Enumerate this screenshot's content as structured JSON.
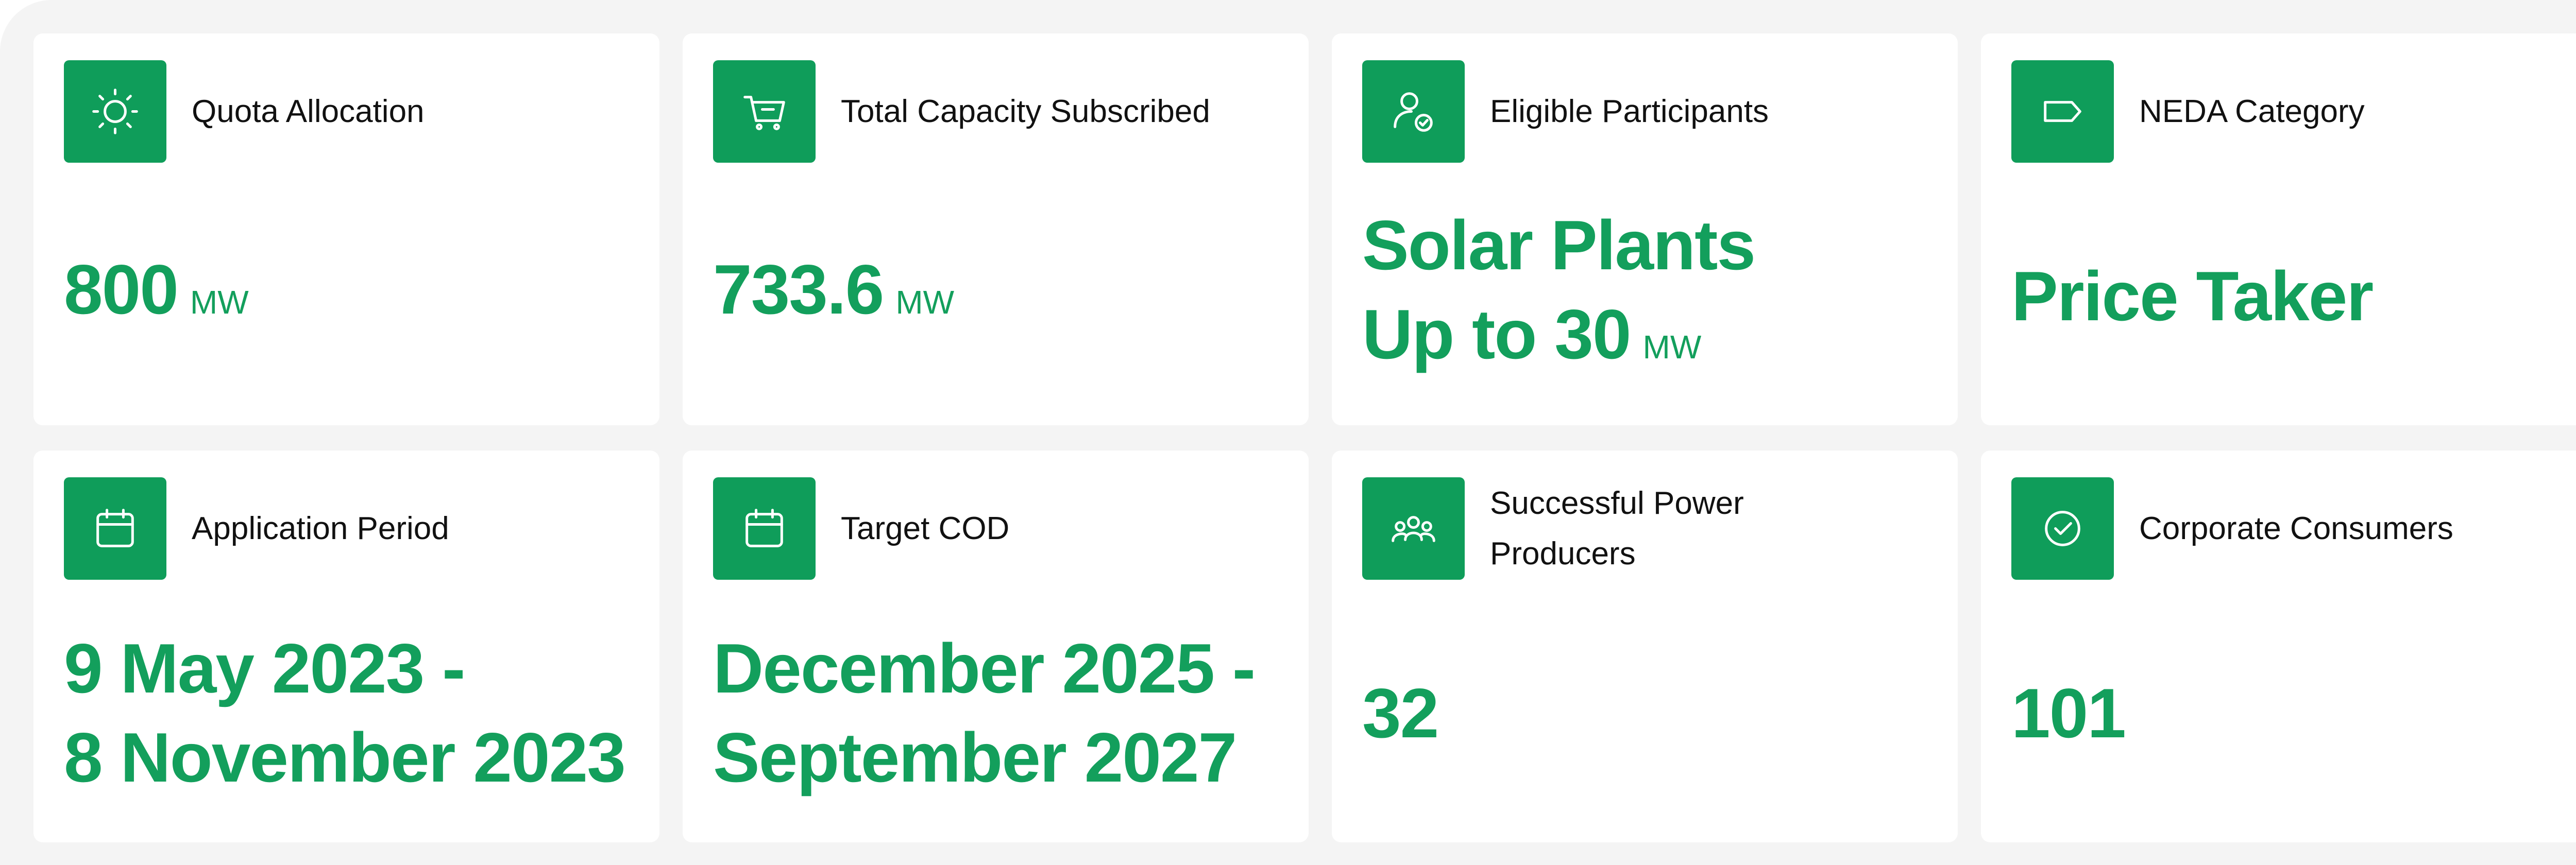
{
  "cards": [
    {
      "title": "Quota Allocation",
      "value": [
        "800"
      ],
      "unit": "MW"
    },
    {
      "title": "Total Capacity Subscribed",
      "value": [
        "733.6"
      ],
      "unit": "MW"
    },
    {
      "title": "Eligible Participants",
      "value": [
        "Solar Plants",
        "Up to 30"
      ],
      "unit": "MW"
    },
    {
      "title": "NEDA Category",
      "value": [
        "Price Taker"
      ]
    },
    {
      "title": "Application Period",
      "value": [
        "9 May 2023 -",
        "8 November 2023"
      ]
    },
    {
      "title": "Target COD",
      "value": [
        "December 2025 -",
        "September 2027"
      ]
    },
    {
      "title": "Successful Power Producers",
      "value": [
        "32"
      ]
    },
    {
      "title": "Corporate Consumers",
      "value": [
        "101"
      ]
    }
  ]
}
